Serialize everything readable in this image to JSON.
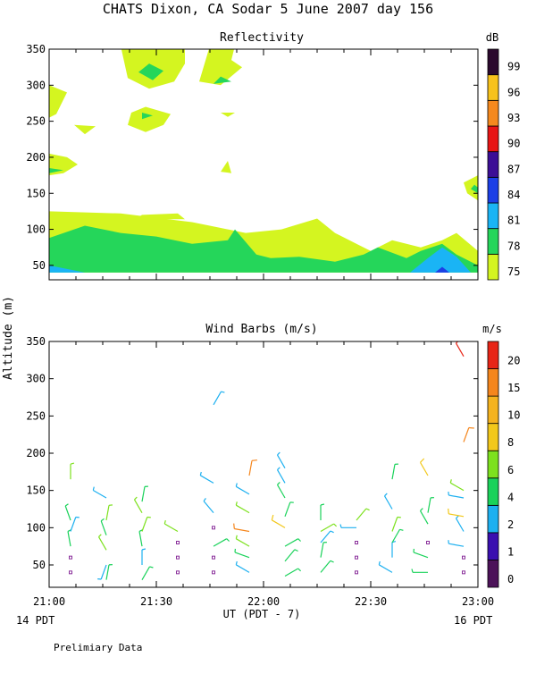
{
  "figure": {
    "title": "CHATS Dixon, CA  Sodar   5 June 2007  day 156",
    "footnote": "Prelimiary Data",
    "left_date_label": "14 PDT",
    "right_date_label": "16 PDT",
    "y_axis_label": "Altitude (m)"
  },
  "colors": {
    "barb_1": "#3a0fb0",
    "barb_2": "#1db0f0",
    "barb_4": "#1ad25a",
    "barb_6": "#7de11e",
    "barb_8": "#f2c81b",
    "barb_15": "#f5861d",
    "barb_20": "#e82517",
    "calm": "#8a2f9b"
  },
  "chart_data": [
    {
      "type": "heatmap",
      "title": "Reflectivity",
      "xlabel": "",
      "ylabel": "Altitude (m)",
      "x_ticks": [
        "21:00",
        "21:30",
        "22:00",
        "22:30",
        "23:00"
      ],
      "y_ticks": [
        50,
        100,
        150,
        200,
        250,
        300,
        350
      ],
      "xlim": [
        0,
        120
      ],
      "ylim": [
        30,
        350
      ],
      "colorbar": {
        "unit": "dB",
        "labels": [
          "75",
          "78",
          "81",
          "84",
          "87",
          "90",
          "93",
          "96",
          "99"
        ],
        "colors": [
          "#d4f520",
          "#25d65a",
          "#1ab4f5",
          "#1c3fe6",
          "#3c0e96",
          "#e81515",
          "#f5891e",
          "#f7c21c",
          "#2b0a2e"
        ]
      },
      "regions": [
        {
          "level": "75",
          "points": [
            [
              0,
              125
            ],
            [
              20,
              122
            ],
            [
              40,
              110
            ],
            [
              55,
              95
            ],
            [
              65,
              100
            ],
            [
              75,
              115
            ],
            [
              80,
              95
            ],
            [
              86,
              80
            ],
            [
              90,
              70
            ],
            [
              96,
              85
            ],
            [
              104,
              75
            ],
            [
              110,
              85
            ],
            [
              114,
              95
            ],
            [
              120,
              70
            ],
            [
              120,
              40
            ],
            [
              0,
              40
            ]
          ]
        },
        {
          "level": "78",
          "points": [
            [
              0,
              88
            ],
            [
              10,
              105
            ],
            [
              20,
              95
            ],
            [
              30,
              90
            ],
            [
              40,
              80
            ],
            [
              50,
              85
            ],
            [
              52,
              100
            ],
            [
              58,
              65
            ],
            [
              62,
              60
            ],
            [
              70,
              62
            ],
            [
              80,
              55
            ],
            [
              88,
              65
            ],
            [
              92,
              75
            ],
            [
              100,
              60
            ],
            [
              104,
              70
            ],
            [
              110,
              80
            ],
            [
              114,
              65
            ],
            [
              120,
              50
            ],
            [
              120,
              40
            ],
            [
              0,
              40
            ]
          ]
        },
        {
          "level": "81",
          "points": [
            [
              0,
              50
            ],
            [
              5,
              45
            ],
            [
              10,
              40
            ],
            [
              0,
              40
            ]
          ]
        },
        {
          "level": "81",
          "points": [
            [
              101,
              40
            ],
            [
              106,
              60
            ],
            [
              110,
              75
            ],
            [
              114,
              62
            ],
            [
              118,
              40
            ]
          ]
        },
        {
          "level": "84",
          "points": [
            [
              108,
              40
            ],
            [
              110,
              48
            ],
            [
              112,
              40
            ]
          ]
        },
        {
          "level": "75",
          "points": [
            [
              20,
              355
            ],
            [
              38,
              355
            ],
            [
              38,
              330
            ],
            [
              35,
              305
            ],
            [
              28,
              295
            ],
            [
              22,
              310
            ]
          ]
        },
        {
          "level": "78",
          "points": [
            [
              28,
              330
            ],
            [
              32,
              320
            ],
            [
              29,
              307
            ],
            [
              25,
              318
            ]
          ]
        },
        {
          "level": "75",
          "points": [
            [
              45,
              355
            ],
            [
              52,
              355
            ],
            [
              51,
              335
            ],
            [
              54,
              325
            ],
            [
              48,
              300
            ],
            [
              42,
              305
            ]
          ]
        },
        {
          "level": "78",
          "points": [
            [
              48,
              312
            ],
            [
              51,
              305
            ],
            [
              46,
              302
            ]
          ]
        },
        {
          "level": "75",
          "points": [
            [
              0,
              300
            ],
            [
              5,
              290
            ],
            [
              2,
              260
            ],
            [
              0,
              255
            ]
          ]
        },
        {
          "level": "75",
          "points": [
            [
              23,
              262
            ],
            [
              27,
              270
            ],
            [
              34,
              260
            ],
            [
              32,
              245
            ],
            [
              27,
              235
            ],
            [
              22,
              245
            ]
          ]
        },
        {
          "level": "78",
          "points": [
            [
              26,
              262
            ],
            [
              29,
              258
            ],
            [
              26,
              253
            ]
          ]
        },
        {
          "level": "75",
          "points": [
            [
              48,
              262
            ],
            [
              52,
              262
            ],
            [
              50,
              256
            ]
          ]
        },
        {
          "level": "75",
          "points": [
            [
              7,
              245
            ],
            [
              13,
              243
            ],
            [
              10,
              232
            ]
          ]
        },
        {
          "level": "75",
          "points": [
            [
              0,
              205
            ],
            [
              5,
              200
            ],
            [
              8,
              190
            ],
            [
              4,
              178
            ],
            [
              0,
              175
            ]
          ]
        },
        {
          "level": "78",
          "points": [
            [
              0,
              185
            ],
            [
              4,
              182
            ],
            [
              0,
              178
            ]
          ]
        },
        {
          "level": "75",
          "points": [
            [
              50,
              195
            ],
            [
              51,
              178
            ],
            [
              48,
              180
            ]
          ]
        },
        {
          "level": "75",
          "points": [
            [
              116,
              165
            ],
            [
              120,
              175
            ],
            [
              120,
              140
            ],
            [
              117,
              150
            ]
          ]
        },
        {
          "level": "78",
          "points": [
            [
              119,
              162
            ],
            [
              120,
              158
            ],
            [
              120,
              150
            ],
            [
              118,
              156
            ]
          ]
        },
        {
          "level": "75",
          "points": [
            [
              26,
              120
            ],
            [
              36,
              122
            ],
            [
              38,
              114
            ],
            [
              24,
              114
            ]
          ]
        }
      ]
    },
    {
      "type": "scatter",
      "title": "Wind Barbs (m/s)",
      "xlabel": "UT  (PDT - 7)",
      "ylabel": "Altitude (m)",
      "x_ticks": [
        "21:00",
        "21:30",
        "22:00",
        "22:30",
        "23:00"
      ],
      "y_ticks": [
        50,
        100,
        150,
        200,
        250,
        300,
        350
      ],
      "xlim": [
        0,
        120
      ],
      "ylim": [
        20,
        350
      ],
      "colorbar": {
        "unit": "m/s",
        "labels": [
          "0",
          "1",
          "2",
          "4",
          "6",
          "8",
          "10",
          "15",
          "20"
        ],
        "colors": [
          "#4c1259",
          "#3a0fb0",
          "#1db0f0",
          "#1ad25a",
          "#7de11e",
          "#f2c81b",
          "#f5b31f",
          "#f5861d",
          "#e82517"
        ]
      },
      "barbs": [
        {
          "t": 6,
          "alt": 40,
          "speed": 0,
          "dir": 0
        },
        {
          "t": 6,
          "alt": 60,
          "speed": 0,
          "dir": 0
        },
        {
          "t": 6,
          "alt": 75,
          "speed": 4,
          "dir": 350
        },
        {
          "t": 6,
          "alt": 95,
          "speed": 2,
          "dir": 20
        },
        {
          "t": 6,
          "alt": 110,
          "speed": 4,
          "dir": 340
        },
        {
          "t": 6,
          "alt": 165,
          "speed": 6,
          "dir": 0
        },
        {
          "t": 16,
          "alt": 30,
          "speed": 4,
          "dir": 10
        },
        {
          "t": 16,
          "alt": 50,
          "speed": 2,
          "dir": 200
        },
        {
          "t": 16,
          "alt": 70,
          "speed": 6,
          "dir": 330
        },
        {
          "t": 16,
          "alt": 90,
          "speed": 4,
          "dir": 340
        },
        {
          "t": 16,
          "alt": 110,
          "speed": 6,
          "dir": 10
        },
        {
          "t": 16,
          "alt": 140,
          "speed": 2,
          "dir": 300
        },
        {
          "t": 26,
          "alt": 30,
          "speed": 4,
          "dir": 30
        },
        {
          "t": 26,
          "alt": 50,
          "speed": 2,
          "dir": 0
        },
        {
          "t": 26,
          "alt": 75,
          "speed": 4,
          "dir": 350
        },
        {
          "t": 26,
          "alt": 95,
          "speed": 6,
          "dir": 20
        },
        {
          "t": 26,
          "alt": 120,
          "speed": 6,
          "dir": 330
        },
        {
          "t": 26,
          "alt": 135,
          "speed": 4,
          "dir": 10
        },
        {
          "t": 36,
          "alt": 40,
          "speed": 0,
          "dir": 0
        },
        {
          "t": 36,
          "alt": 60,
          "speed": 0,
          "dir": 0
        },
        {
          "t": 36,
          "alt": 80,
          "speed": 0,
          "dir": 0
        },
        {
          "t": 36,
          "alt": 95,
          "speed": 6,
          "dir": 300
        },
        {
          "t": 46,
          "alt": 40,
          "speed": 0,
          "dir": 0
        },
        {
          "t": 46,
          "alt": 60,
          "speed": 0,
          "dir": 0
        },
        {
          "t": 46,
          "alt": 75,
          "speed": 4,
          "dir": 60
        },
        {
          "t": 46,
          "alt": 100,
          "speed": 0,
          "dir": 0
        },
        {
          "t": 46,
          "alt": 120,
          "speed": 2,
          "dir": 320
        },
        {
          "t": 46,
          "alt": 160,
          "speed": 2,
          "dir": 300
        },
        {
          "t": 46,
          "alt": 265,
          "speed": 2,
          "dir": 30
        },
        {
          "t": 56,
          "alt": 40,
          "speed": 2,
          "dir": 300
        },
        {
          "t": 56,
          "alt": 60,
          "speed": 4,
          "dir": 290
        },
        {
          "t": 56,
          "alt": 75,
          "speed": 6,
          "dir": 300
        },
        {
          "t": 56,
          "alt": 95,
          "speed": 15,
          "dir": 280
        },
        {
          "t": 56,
          "alt": 120,
          "speed": 6,
          "dir": 300
        },
        {
          "t": 56,
          "alt": 145,
          "speed": 2,
          "dir": 300
        },
        {
          "t": 56,
          "alt": 170,
          "speed": 15,
          "dir": 10
        },
        {
          "t": 66,
          "alt": 35,
          "speed": 4,
          "dir": 60
        },
        {
          "t": 66,
          "alt": 55,
          "speed": 4,
          "dir": 40
        },
        {
          "t": 66,
          "alt": 75,
          "speed": 4,
          "dir": 60
        },
        {
          "t": 66,
          "alt": 100,
          "speed": 8,
          "dir": 300
        },
        {
          "t": 66,
          "alt": 115,
          "speed": 4,
          "dir": 20
        },
        {
          "t": 66,
          "alt": 140,
          "speed": 4,
          "dir": 330
        },
        {
          "t": 66,
          "alt": 160,
          "speed": 2,
          "dir": 330
        },
        {
          "t": 66,
          "alt": 180,
          "speed": 2,
          "dir": 330
        },
        {
          "t": 76,
          "alt": 40,
          "speed": 4,
          "dir": 40
        },
        {
          "t": 76,
          "alt": 60,
          "speed": 4,
          "dir": 10
        },
        {
          "t": 76,
          "alt": 80,
          "speed": 2,
          "dir": 40
        },
        {
          "t": 76,
          "alt": 95,
          "speed": 6,
          "dir": 60
        },
        {
          "t": 76,
          "alt": 110,
          "speed": 4,
          "dir": 0
        },
        {
          "t": 86,
          "alt": 40,
          "speed": 0,
          "dir": 0
        },
        {
          "t": 86,
          "alt": 60,
          "speed": 0,
          "dir": 0
        },
        {
          "t": 86,
          "alt": 80,
          "speed": 0,
          "dir": 0
        },
        {
          "t": 86,
          "alt": 100,
          "speed": 2,
          "dir": 270
        },
        {
          "t": 86,
          "alt": 110,
          "speed": 6,
          "dir": 40
        },
        {
          "t": 96,
          "alt": 40,
          "speed": 2,
          "dir": 300
        },
        {
          "t": 96,
          "alt": 60,
          "speed": 2,
          "dir": 0
        },
        {
          "t": 96,
          "alt": 80,
          "speed": 4,
          "dir": 30
        },
        {
          "t": 96,
          "alt": 95,
          "speed": 6,
          "dir": 20
        },
        {
          "t": 96,
          "alt": 125,
          "speed": 2,
          "dir": 330
        },
        {
          "t": 96,
          "alt": 165,
          "speed": 4,
          "dir": 10
        },
        {
          "t": 106,
          "alt": 40,
          "speed": 4,
          "dir": 270
        },
        {
          "t": 106,
          "alt": 60,
          "speed": 4,
          "dir": 290
        },
        {
          "t": 106,
          "alt": 80,
          "speed": 0,
          "dir": 0
        },
        {
          "t": 106,
          "alt": 105,
          "speed": 4,
          "dir": 330
        },
        {
          "t": 106,
          "alt": 120,
          "speed": 4,
          "dir": 10
        },
        {
          "t": 106,
          "alt": 170,
          "speed": 8,
          "dir": 330
        },
        {
          "t": 116,
          "alt": 40,
          "speed": 0,
          "dir": 0
        },
        {
          "t": 116,
          "alt": 60,
          "speed": 0,
          "dir": 0
        },
        {
          "t": 116,
          "alt": 75,
          "speed": 2,
          "dir": 280
        },
        {
          "t": 116,
          "alt": 95,
          "speed": 2,
          "dir": 330
        },
        {
          "t": 116,
          "alt": 115,
          "speed": 8,
          "dir": 280
        },
        {
          "t": 116,
          "alt": 140,
          "speed": 2,
          "dir": 280
        },
        {
          "t": 116,
          "alt": 150,
          "speed": 6,
          "dir": 300
        },
        {
          "t": 116,
          "alt": 215,
          "speed": 15,
          "dir": 20
        },
        {
          "t": 116,
          "alt": 330,
          "speed": 20,
          "dir": 330
        }
      ]
    }
  ]
}
